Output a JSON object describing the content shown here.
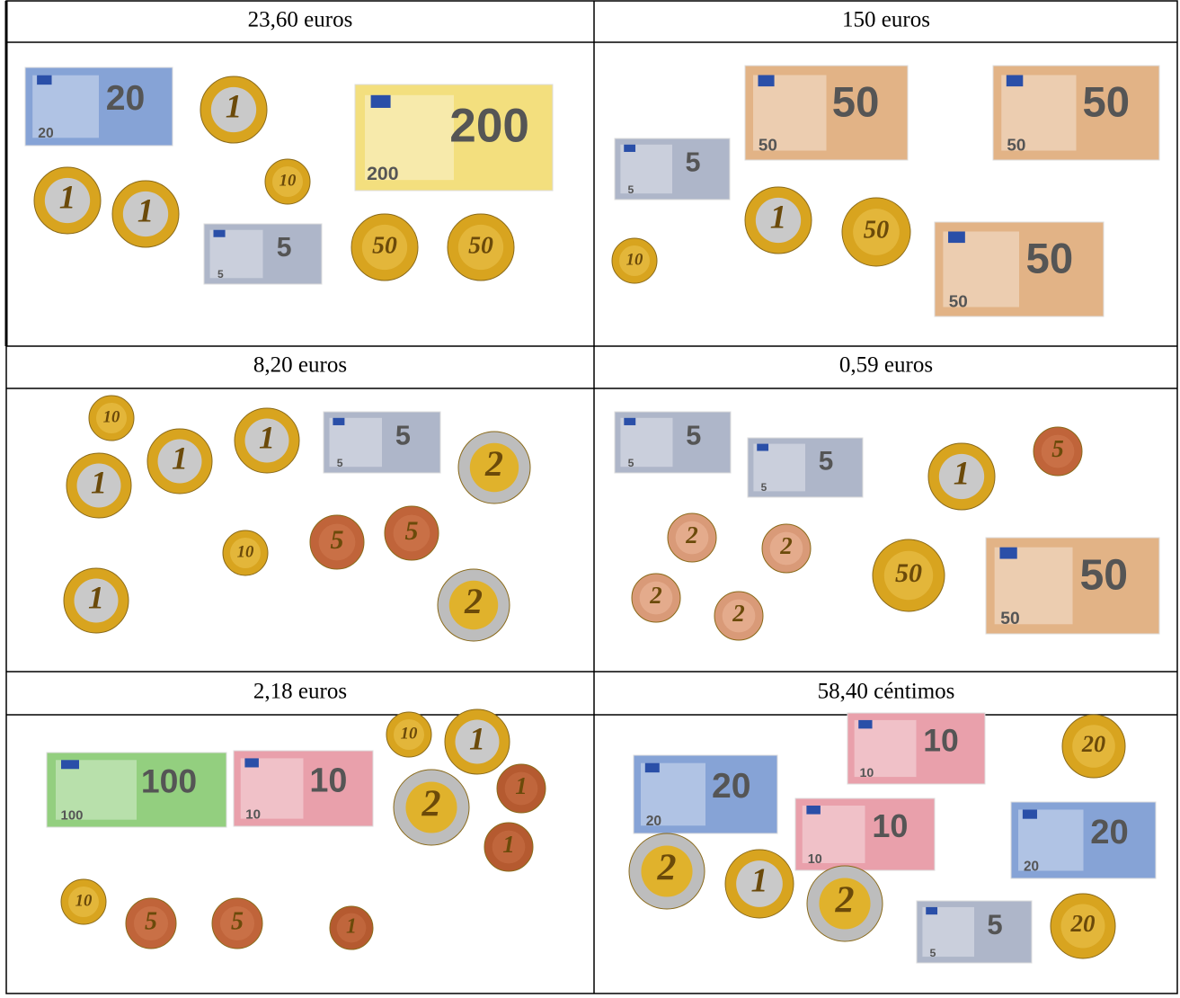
{
  "table": {
    "cells": [
      {
        "title": "23,60 euros",
        "items": [
          {
            "kind": "note",
            "label": "20",
            "color": "#86a3d6"
          },
          {
            "kind": "coin",
            "label": "1",
            "color": "#d8a41f",
            "core": "#c9c9c9"
          },
          {
            "kind": "note",
            "label": "200",
            "color": "#f3df7e"
          },
          {
            "kind": "coin",
            "label": "10",
            "color": "#d8a41f",
            "core": "#e3b63a"
          },
          {
            "kind": "coin",
            "label": "1",
            "color": "#d8a41f",
            "core": "#c9c9c9"
          },
          {
            "kind": "coin",
            "label": "1",
            "color": "#d8a41f",
            "core": "#c9c9c9"
          },
          {
            "kind": "note",
            "label": "5",
            "color": "#aeb6c9"
          },
          {
            "kind": "coin",
            "label": "50",
            "color": "#d8a41f",
            "core": "#e3b63a"
          },
          {
            "kind": "coin",
            "label": "50",
            "color": "#d8a41f",
            "core": "#e3b63a"
          }
        ]
      },
      {
        "title": "150 euros",
        "items": [
          {
            "kind": "note",
            "label": "50",
            "color": "#e2b386"
          },
          {
            "kind": "note",
            "label": "50",
            "color": "#e2b386"
          },
          {
            "kind": "note",
            "label": "5",
            "color": "#aeb6c9"
          },
          {
            "kind": "coin",
            "label": "1",
            "color": "#d8a41f",
            "core": "#c9c9c9"
          },
          {
            "kind": "coin",
            "label": "50",
            "color": "#d8a41f",
            "core": "#e3b63a"
          },
          {
            "kind": "coin",
            "label": "10",
            "color": "#d8a41f",
            "core": "#e3b63a"
          },
          {
            "kind": "note",
            "label": "50",
            "color": "#e2b386"
          }
        ]
      },
      {
        "title": "8,20 euros",
        "items": [
          {
            "kind": "coin",
            "label": "10",
            "color": "#d8a41f",
            "core": "#e3b63a"
          },
          {
            "kind": "coin",
            "label": "1",
            "color": "#d8a41f",
            "core": "#c9c9c9"
          },
          {
            "kind": "note",
            "label": "5",
            "color": "#aeb6c9"
          },
          {
            "kind": "coin",
            "label": "1",
            "color": "#d8a41f",
            "core": "#c9c9c9"
          },
          {
            "kind": "coin",
            "label": "1",
            "color": "#d8a41f",
            "core": "#c9c9c9"
          },
          {
            "kind": "coin",
            "label": "2",
            "color": "#bdbdbd",
            "core": "#e0b22c"
          },
          {
            "kind": "coin",
            "label": "10",
            "color": "#d8a41f",
            "core": "#e3b63a"
          },
          {
            "kind": "coin",
            "label": "5",
            "color": "#c0643a",
            "core": "#c97046"
          },
          {
            "kind": "coin",
            "label": "5",
            "color": "#c0643a",
            "core": "#c97046"
          },
          {
            "kind": "coin",
            "label": "1",
            "color": "#d8a41f",
            "core": "#c9c9c9"
          },
          {
            "kind": "coin",
            "label": "2",
            "color": "#bdbdbd",
            "core": "#e0b22c"
          }
        ]
      },
      {
        "title": "0,59 euros",
        "items": [
          {
            "kind": "note",
            "label": "5",
            "color": "#aeb6c9"
          },
          {
            "kind": "note",
            "label": "5",
            "color": "#aeb6c9"
          },
          {
            "kind": "coin",
            "label": "5",
            "color": "#c0643a",
            "core": "#c97046"
          },
          {
            "kind": "coin",
            "label": "1",
            "color": "#d8a41f",
            "core": "#c9c9c9"
          },
          {
            "kind": "coin",
            "label": "2",
            "color": "#d99a78",
            "core": "#e4ab8c"
          },
          {
            "kind": "coin",
            "label": "2",
            "color": "#d99a78",
            "core": "#e4ab8c"
          },
          {
            "kind": "coin",
            "label": "50",
            "color": "#d8a41f",
            "core": "#e3b63a"
          },
          {
            "kind": "note",
            "label": "50",
            "color": "#e2b386"
          },
          {
            "kind": "coin",
            "label": "2",
            "color": "#d99a78",
            "core": "#e4ab8c"
          },
          {
            "kind": "coin",
            "label": "2",
            "color": "#d99a78",
            "core": "#e4ab8c"
          }
        ]
      },
      {
        "title": "2,18 euros",
        "items": [
          {
            "kind": "note",
            "label": "100",
            "color": "#93cf7f"
          },
          {
            "kind": "note",
            "label": "10",
            "color": "#e9a0ab"
          },
          {
            "kind": "coin",
            "label": "10",
            "color": "#d8a41f",
            "core": "#e3b63a"
          },
          {
            "kind": "coin",
            "label": "1",
            "color": "#d8a41f",
            "core": "#c9c9c9"
          },
          {
            "kind": "coin",
            "label": "2",
            "color": "#bdbdbd",
            "core": "#e0b22c"
          },
          {
            "kind": "coin",
            "label": "1",
            "color": "#b55a30",
            "core": "#c0663c"
          },
          {
            "kind": "coin",
            "label": "1",
            "color": "#b55a30",
            "core": "#c0663c"
          },
          {
            "kind": "coin",
            "label": "10",
            "color": "#d8a41f",
            "core": "#e3b63a"
          },
          {
            "kind": "coin",
            "label": "5",
            "color": "#c0643a",
            "core": "#c97046"
          },
          {
            "kind": "coin",
            "label": "5",
            "color": "#c0643a",
            "core": "#c97046"
          },
          {
            "kind": "coin",
            "label": "1",
            "color": "#b55a30",
            "core": "#c0663c"
          }
        ]
      },
      {
        "title": "58,40 céntimos",
        "items": [
          {
            "kind": "note",
            "label": "10",
            "color": "#e9a0ab"
          },
          {
            "kind": "coin",
            "label": "20",
            "color": "#d8a41f",
            "core": "#e3b63a"
          },
          {
            "kind": "note",
            "label": "20",
            "color": "#86a3d6"
          },
          {
            "kind": "note",
            "label": "10",
            "color": "#e9a0ab"
          },
          {
            "kind": "note",
            "label": "20",
            "color": "#86a3d6"
          },
          {
            "kind": "coin",
            "label": "2",
            "color": "#bdbdbd",
            "core": "#e0b22c"
          },
          {
            "kind": "coin",
            "label": "1",
            "color": "#d8a41f",
            "core": "#c9c9c9"
          },
          {
            "kind": "coin",
            "label": "2",
            "color": "#bdbdbd",
            "core": "#e0b22c"
          },
          {
            "kind": "note",
            "label": "5",
            "color": "#aeb6c9"
          },
          {
            "kind": "coin",
            "label": "20",
            "color": "#d8a41f",
            "core": "#e3b63a"
          }
        ]
      }
    ]
  }
}
